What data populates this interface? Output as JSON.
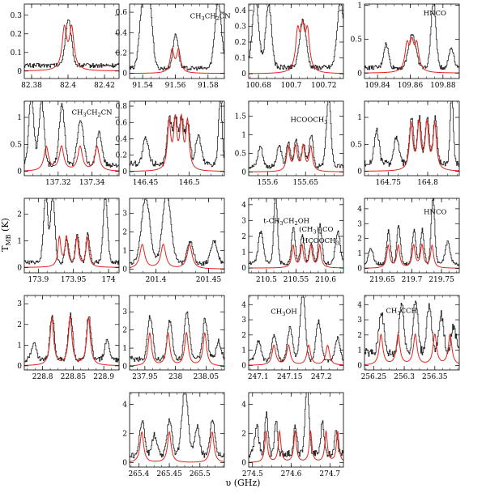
{
  "figure": {
    "xlabel": "υ (GHz)",
    "ylabel": "T",
    "ylabel_sub": "MB",
    "ylabel_unit": " (K)"
  },
  "colors": {
    "observed": "#222222",
    "model": "#e0231c",
    "frame": "#000000"
  },
  "chart_data": [
    {
      "type": "line",
      "xlim": [
        82.376,
        82.428
      ],
      "ylim": [
        -0.04,
        0.36
      ],
      "xticks": [
        82.38,
        82.4,
        82.42
      ],
      "yticks": [
        0,
        0.1,
        0.2,
        0.3
      ],
      "model_lines": [
        82.398,
        82.402
      ],
      "model_amp": 0.22,
      "model_width": 0.0015,
      "annotations": [],
      "observed_peaks": [
        [
          82.4,
          0.24,
          0.0017
        ]
      ],
      "observed_base": 0.03
    },
    {
      "type": "line",
      "xlim": [
        91.532,
        91.59
      ],
      "ylim": [
        -0.05,
        0.68
      ],
      "xticks": [
        91.54,
        91.56,
        91.58
      ],
      "yticks": [
        0,
        0.2,
        0.4,
        0.6
      ],
      "model_lines": [
        91.558,
        91.562
      ],
      "model_amp": 0.22,
      "model_width": 0.0014,
      "annotations": [
        {
          "text": "CH3CH2CN",
          "x": 91.569,
          "y": 0.54
        }
      ],
      "observed_peaks": [
        [
          91.54,
          0.66,
          0.002
        ],
        [
          91.544,
          0.62,
          0.0018
        ],
        [
          91.56,
          0.34,
          0.0016
        ],
        [
          91.586,
          0.66,
          0.002
        ]
      ],
      "observed_base": 0.05
    },
    {
      "type": "line",
      "xlim": [
        100.674,
        100.732
      ],
      "ylim": [
        -0.03,
        0.44
      ],
      "xticks": [
        100.68,
        100.7,
        100.72
      ],
      "yticks": [
        0,
        0.1,
        0.2,
        0.3,
        0.4
      ],
      "model_lines": [
        100.704,
        100.707,
        100.71
      ],
      "model_amp": 0.24,
      "model_width": 0.0015,
      "annotations": [],
      "observed_peaks": [
        [
          100.678,
          0.42,
          0.002
        ],
        [
          100.686,
          0.4,
          0.0018
        ],
        [
          100.707,
          0.3,
          0.002
        ],
        [
          100.73,
          0.42,
          0.002
        ]
      ],
      "observed_base": 0.04
    },
    {
      "type": "line",
      "xlim": [
        109.832,
        109.89
      ],
      "ylim": [
        -0.08,
        1.02
      ],
      "xticks": [
        109.84,
        109.86,
        109.88
      ],
      "yticks": [
        0,
        0.5,
        1
      ],
      "model_lines": [
        109.858,
        109.861,
        109.864
      ],
      "model_amp": 0.38,
      "model_width": 0.0015,
      "annotations": [
        {
          "text": "HNCO",
          "x": 109.868,
          "y": 0.85
        }
      ],
      "observed_peaks": [
        [
          109.845,
          0.35,
          0.0015
        ],
        [
          109.861,
          0.5,
          0.0022
        ],
        [
          109.874,
          0.98,
          0.0015
        ],
        [
          109.885,
          0.3,
          0.0015
        ]
      ],
      "observed_base": 0.08
    },
    {
      "type": "line",
      "xlim": [
        137.3,
        137.356
      ],
      "ylim": [
        -0.08,
        1.3
      ],
      "xticks": [
        137.32,
        137.34
      ],
      "yticks": [
        0,
        0.5,
        1
      ],
      "model_lines": [
        137.313,
        137.322,
        137.333,
        137.343
      ],
      "model_amp": 0.45,
      "model_width": 0.0016,
      "annotations": [
        {
          "text": "CH3CH2CN",
          "x": 137.328,
          "y": 1.05
        }
      ],
      "observed_peaks": [
        [
          137.304,
          1.25,
          0.0015
        ],
        [
          137.31,
          1.2,
          0.0015
        ],
        [
          137.322,
          1.1,
          0.0016
        ],
        [
          137.333,
          0.85,
          0.0018
        ],
        [
          137.344,
          0.6,
          0.0016
        ]
      ],
      "observed_base": 0.12
    },
    {
      "type": "line",
      "xlim": [
        146.432,
        146.54
      ],
      "ylim": [
        -0.05,
        0.86
      ],
      "xticks": [
        146.45,
        146.5
      ],
      "yticks": [
        0,
        0.2,
        0.4,
        0.6,
        0.8
      ],
      "model_lines": [
        146.477,
        146.484,
        146.491,
        146.498
      ],
      "model_amp": 0.58,
      "model_width": 0.0022,
      "annotations": [],
      "observed_peaks": [
        [
          146.45,
          0.3,
          0.003
        ],
        [
          146.477,
          0.55,
          0.0025
        ],
        [
          146.484,
          0.56,
          0.0025
        ],
        [
          146.491,
          0.55,
          0.0025
        ],
        [
          146.498,
          0.5,
          0.0025
        ],
        [
          146.51,
          0.35,
          0.003
        ],
        [
          146.535,
          0.82,
          0.002
        ]
      ],
      "observed_base": 0.1
    },
    {
      "type": "line",
      "xlim": [
        155.575,
        155.7
      ],
      "ylim": [
        -0.1,
        1.9
      ],
      "xticks": [
        155.6,
        155.65
      ],
      "yticks": [
        0,
        0.5,
        1,
        1.5
      ],
      "model_lines": [
        155.627,
        155.637,
        155.647,
        155.657
      ],
      "model_amp": 0.65,
      "model_width": 0.0025,
      "annotations": [
        {
          "text": "HCOOCH3",
          "x": 155.63,
          "y": 1.35
        }
      ],
      "observed_peaks": [
        [
          155.59,
          0.55,
          0.003
        ],
        [
          155.615,
          0.55,
          0.003
        ],
        [
          155.627,
          0.65,
          0.0025
        ],
        [
          155.637,
          0.75,
          0.0025
        ],
        [
          155.647,
          0.6,
          0.0025
        ],
        [
          155.657,
          0.85,
          0.0025
        ],
        [
          155.68,
          1.85,
          0.003
        ]
      ],
      "observed_base": 0.15
    },
    {
      "type": "line",
      "xlim": [
        164.72,
        164.84
      ],
      "ylim": [
        -0.08,
        1.3
      ],
      "xticks": [
        164.75,
        164.8
      ],
      "yticks": [
        0,
        0.5,
        1
      ],
      "model_lines": [
        164.779,
        164.789,
        164.799,
        164.809
      ],
      "model_amp": 0.85,
      "model_width": 0.0025,
      "annotations": [],
      "observed_peaks": [
        [
          164.735,
          0.6,
          0.003
        ],
        [
          164.76,
          0.5,
          0.003
        ],
        [
          164.779,
          0.85,
          0.0025
        ],
        [
          164.789,
          0.85,
          0.0025
        ],
        [
          164.799,
          0.85,
          0.0025
        ],
        [
          164.809,
          0.85,
          0.0025
        ],
        [
          164.83,
          1.25,
          0.002
        ]
      ],
      "observed_base": 0.15
    },
    {
      "type": "line",
      "xlim": [
        173.88,
        174.015
      ],
      "ylim": [
        -0.2,
        2.6
      ],
      "xticks": [
        173.9,
        173.95,
        174
      ],
      "yticks": [
        0,
        1,
        2
      ],
      "model_lines": [
        173.93,
        173.94,
        173.955,
        173.97
      ],
      "model_amp": 1.1,
      "model_width": 0.0025,
      "annotations": [],
      "observed_peaks": [
        [
          173.91,
          2.55,
          0.003
        ],
        [
          173.92,
          2.5,
          0.003
        ],
        [
          173.94,
          0.9,
          0.0025
        ],
        [
          173.955,
          1.1,
          0.0025
        ],
        [
          173.97,
          1.1,
          0.0025
        ],
        [
          173.995,
          2.5,
          0.003
        ]
      ],
      "observed_base": 0.2
    },
    {
      "type": "line",
      "xlim": [
        201.375,
        201.465
      ],
      "ylim": [
        -0.2,
        3.8
      ],
      "xticks": [
        201.4,
        201.45
      ],
      "yticks": [
        0,
        1,
        2,
        3
      ],
      "model_lines": [
        201.387,
        201.407,
        201.432
      ],
      "model_amp": 1.3,
      "model_width": 0.0028,
      "annotations": [],
      "observed_peaks": [
        [
          201.39,
          3.6,
          0.004
        ],
        [
          201.41,
          3.7,
          0.004
        ],
        [
          201.432,
          1.2,
          0.003
        ],
        [
          201.455,
          1.2,
          0.003
        ]
      ],
      "observed_base": 0.3
    },
    {
      "type": "line",
      "xlim": [
        210.47,
        210.63
      ],
      "ylim": [
        -0.3,
        4.4
      ],
      "xticks": [
        210.5,
        210.55,
        210.6
      ],
      "yticks": [
        0,
        1,
        2,
        3,
        4
      ],
      "model_lines": [
        210.545,
        210.56,
        210.575,
        210.59
      ],
      "model_amp": 1.4,
      "model_width": 0.0028,
      "annotations": [
        {
          "text": "t-CH3CH2OH",
          "x": 210.495,
          "y": 2.85
        },
        {
          "text": "(CH3)2CO",
          "x": 210.555,
          "y": 2.3
        },
        {
          "text": "HCOOCH3",
          "x": 210.56,
          "y": 1.6
        }
      ],
      "observed_peaks": [
        [
          210.49,
          2.0,
          0.004
        ],
        [
          210.515,
          4.3,
          0.003
        ],
        [
          210.545,
          2.3,
          0.003
        ],
        [
          210.56,
          1.8,
          0.003
        ],
        [
          210.575,
          1.3,
          0.003
        ],
        [
          210.59,
          2.5,
          0.003
        ],
        [
          210.62,
          2.0,
          0.004
        ]
      ],
      "observed_base": 0.3
    },
    {
      "type": "line",
      "xlim": [
        219.62,
        219.78
      ],
      "ylim": [
        -0.3,
        4.7
      ],
      "xticks": [
        219.65,
        219.7,
        219.75
      ],
      "yticks": [
        0,
        1,
        2,
        3,
        4
      ],
      "model_lines": [
        219.66,
        219.677,
        219.703,
        219.717,
        219.734
      ],
      "model_amp": 1.5,
      "model_width": 0.003,
      "annotations": [
        {
          "text": "HNCO",
          "x": 219.72,
          "y": 3.65
        }
      ],
      "observed_peaks": [
        [
          219.63,
          1.0,
          0.004
        ],
        [
          219.66,
          2.2,
          0.003
        ],
        [
          219.677,
          2.6,
          0.003
        ],
        [
          219.703,
          2.3,
          0.003
        ],
        [
          219.717,
          2.3,
          0.003
        ],
        [
          219.735,
          4.5,
          0.003
        ],
        [
          219.76,
          1.5,
          0.004
        ]
      ],
      "observed_base": 0.3
    },
    {
      "type": "line",
      "xlim": [
        228.77,
        228.925
      ],
      "ylim": [
        -0.2,
        3.4
      ],
      "xticks": [
        228.8,
        228.85,
        228.9
      ],
      "yticks": [
        0,
        1,
        2,
        3
      ],
      "model_lines": [
        228.815,
        228.845,
        228.875
      ],
      "model_amp": 2.3,
      "model_width": 0.0035,
      "annotations": [],
      "observed_peaks": [
        [
          228.785,
          0.8,
          0.004
        ],
        [
          228.815,
          2.2,
          0.0035
        ],
        [
          228.845,
          2.25,
          0.0035
        ],
        [
          228.875,
          2.15,
          0.0035
        ],
        [
          228.905,
          0.9,
          0.004
        ]
      ],
      "observed_base": 0.3
    },
    {
      "type": "line",
      "xlim": [
        237.925,
        238.08
      ],
      "ylim": [
        -0.2,
        3.9
      ],
      "xticks": [
        237.95,
        238.0,
        238.05
      ],
      "yticks": [
        0,
        1,
        2,
        3
      ],
      "model_lines": [
        237.958,
        237.988,
        238.018,
        238.048
      ],
      "model_amp": 1.8,
      "model_width": 0.0035,
      "annotations": [],
      "observed_peaks": [
        [
          237.958,
          2.4,
          0.004
        ],
        [
          237.99,
          2.1,
          0.004
        ],
        [
          238.018,
          2.7,
          0.004
        ],
        [
          238.048,
          2.2,
          0.004
        ],
        [
          238.07,
          1.0,
          0.004
        ]
      ],
      "observed_base": 0.4
    },
    {
      "type": "line",
      "xlim": [
        247.085,
        247.235
      ],
      "ylim": [
        -0.3,
        4.6
      ],
      "xticks": [
        247.1,
        247.15,
        247.2
      ],
      "yticks": [
        0,
        1,
        2,
        3,
        4
      ],
      "model_lines": [
        247.125,
        247.148,
        247.18,
        247.21
      ],
      "model_amp": 1.3,
      "model_width": 0.0035,
      "annotations": [
        {
          "text": "CH3OH",
          "x": 247.12,
          "y": 3.4
        }
      ],
      "observed_peaks": [
        [
          247.1,
          1.3,
          0.004
        ],
        [
          247.125,
          1.7,
          0.004
        ],
        [
          247.15,
          2.2,
          0.004
        ],
        [
          247.17,
          4.5,
          0.004
        ],
        [
          247.195,
          2.6,
          0.004
        ],
        [
          247.225,
          1.5,
          0.004
        ]
      ],
      "observed_base": 0.3
    },
    {
      "type": "line",
      "xlim": [
        256.235,
        256.39
      ],
      "ylim": [
        -0.3,
        4.6
      ],
      "xticks": [
        256.25,
        256.3,
        256.35
      ],
      "yticks": [
        0,
        1,
        2,
        3,
        4
      ],
      "model_lines": [
        256.262,
        256.29,
        256.318,
        256.35,
        256.375
      ],
      "model_amp": 2.0,
      "model_width": 0.0035,
      "annotations": [
        {
          "text": "CH3CCH",
          "x": 256.27,
          "y": 3.45
        }
      ],
      "observed_peaks": [
        [
          256.262,
          2.8,
          0.004
        ],
        [
          256.295,
          3.3,
          0.004
        ],
        [
          256.318,
          3.4,
          0.004
        ],
        [
          256.34,
          3.1,
          0.004
        ],
        [
          256.36,
          2.5,
          0.004
        ],
        [
          256.38,
          1.8,
          0.004
        ]
      ],
      "observed_base": 0.8
    },
    {
      "type": "line",
      "xlim": [
        265.385,
        265.54
      ],
      "ylim": [
        -0.3,
        4.8
      ],
      "xticks": [
        265.4,
        265.45,
        265.5
      ],
      "yticks": [
        0,
        2,
        4
      ],
      "model_lines": [
        265.405,
        265.45,
        265.52
      ],
      "model_amp": 2.1,
      "model_width": 0.0035,
      "annotations": [],
      "observed_peaks": [
        [
          265.405,
          2.4,
          0.004
        ],
        [
          265.425,
          1.4,
          0.004
        ],
        [
          265.45,
          2.5,
          0.004
        ],
        [
          265.475,
          4.5,
          0.005
        ],
        [
          265.495,
          2.0,
          0.004
        ],
        [
          265.52,
          2.5,
          0.004
        ]
      ],
      "observed_base": 0.5
    },
    {
      "type": "line",
      "xlim": [
        274.49,
        274.735
      ],
      "ylim": [
        -0.3,
        4.8
      ],
      "xticks": [
        274.5,
        274.6,
        274.7
      ],
      "yticks": [
        0,
        2,
        4
      ],
      "model_lines": [
        274.535,
        274.57,
        274.61,
        274.65,
        274.69,
        274.72
      ],
      "model_amp": 2.1,
      "model_width": 0.004,
      "annotations": [],
      "observed_peaks": [
        [
          274.51,
          2.0,
          0.005
        ],
        [
          274.535,
          2.7,
          0.004
        ],
        [
          274.56,
          2.2,
          0.004
        ],
        [
          274.61,
          2.0,
          0.004
        ],
        [
          274.64,
          4.5,
          0.005
        ],
        [
          274.68,
          2.3,
          0.004
        ],
        [
          274.715,
          1.8,
          0.004
        ]
      ],
      "observed_base": 0.6
    }
  ]
}
